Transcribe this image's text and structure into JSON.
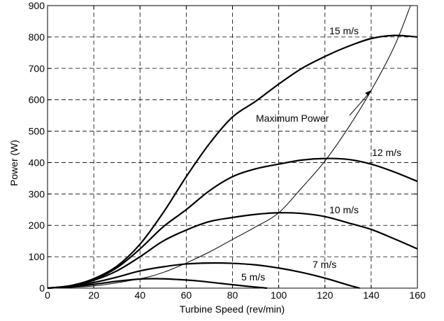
{
  "chart_data": {
    "type": "line",
    "title": "",
    "xlabel": "Turbine Speed (rev/min)",
    "ylabel": "Power (W)",
    "xlim": [
      0,
      160
    ],
    "ylim": [
      0,
      900
    ],
    "xticks": [
      0,
      20,
      40,
      60,
      80,
      100,
      120,
      140,
      160
    ],
    "yticks": [
      0,
      100,
      200,
      300,
      400,
      500,
      600,
      700,
      800,
      900
    ],
    "grid": true,
    "legend": "none",
    "series": [
      {
        "name": "5 m/s",
        "color": "#000000",
        "x": [
          0,
          10,
          20,
          30,
          40,
          47,
          55,
          65,
          75,
          85,
          95
        ],
        "y": [
          0,
          4,
          12,
          22,
          29,
          30,
          28,
          23,
          15,
          7,
          0
        ]
      },
      {
        "name": "7 m/s",
        "color": "#000000",
        "x": [
          0,
          10,
          20,
          30,
          40,
          50,
          60,
          70,
          80,
          90,
          100,
          110,
          120,
          130,
          135
        ],
        "y": [
          0,
          6,
          18,
          35,
          55,
          68,
          77,
          80,
          79,
          74,
          64,
          50,
          32,
          10,
          0
        ]
      },
      {
        "name": "10 m/s",
        "color": "#000000",
        "x": [
          0,
          10,
          20,
          30,
          40,
          50,
          60,
          70,
          80,
          90,
          100,
          110,
          120,
          130,
          140,
          150,
          160
        ],
        "y": [
          0,
          7,
          25,
          55,
          100,
          150,
          185,
          212,
          225,
          235,
          240,
          238,
          228,
          208,
          187,
          157,
          125
        ]
      },
      {
        "name": "12 m/s",
        "color": "#000000",
        "x": [
          0,
          10,
          20,
          30,
          40,
          50,
          60,
          70,
          80,
          90,
          100,
          110,
          120,
          130,
          140,
          150,
          160
        ],
        "y": [
          0,
          8,
          28,
          65,
          125,
          195,
          250,
          310,
          355,
          380,
          395,
          408,
          413,
          410,
          395,
          370,
          340
        ]
      },
      {
        "name": "15 m/s",
        "color": "#000000",
        "x": [
          0,
          10,
          20,
          30,
          40,
          50,
          60,
          70,
          80,
          90,
          100,
          110,
          120,
          130,
          140,
          150,
          160
        ],
        "y": [
          0,
          8,
          30,
          70,
          140,
          240,
          355,
          460,
          545,
          595,
          650,
          700,
          738,
          770,
          795,
          805,
          800
        ]
      },
      {
        "name": "Maximum Power",
        "color": "#000000",
        "x": [
          0,
          20,
          40,
          50,
          60,
          70,
          80,
          90,
          100,
          110,
          120,
          130,
          140,
          150,
          157
        ],
        "y": [
          0,
          7,
          30,
          50,
          80,
          115,
          155,
          195,
          240,
          320,
          405,
          510,
          630,
          770,
          900
        ]
      }
    ],
    "labels": {
      "s15": "15 m/s",
      "s12": "12 m/s",
      "s10": "10 m/s",
      "s7": "7 m/s",
      "s5": "5 m/s",
      "max": "Maximum Power"
    }
  }
}
